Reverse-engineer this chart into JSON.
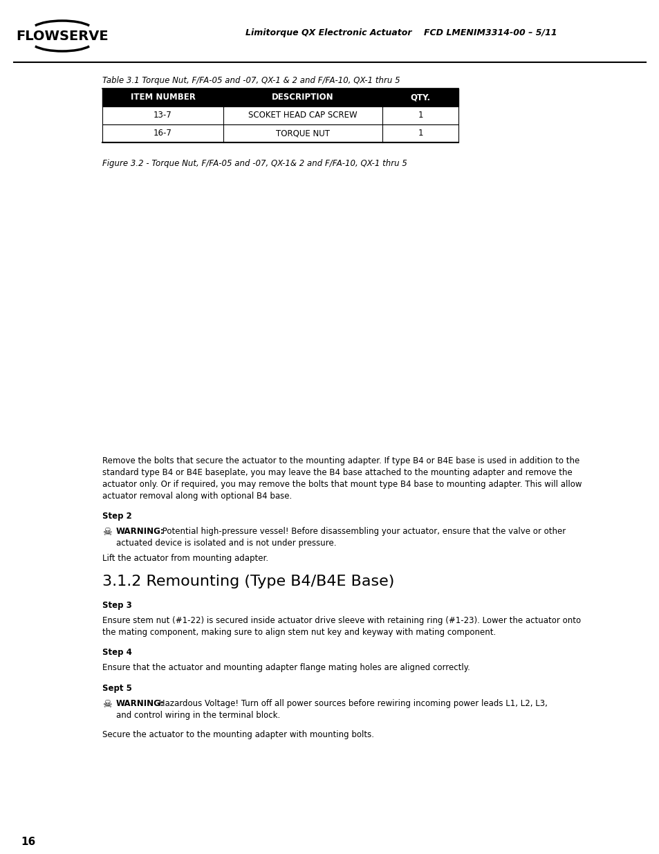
{
  "page_bg": "#ffffff",
  "logo_text": "FLOWSERVE",
  "header_right": "Limitorque QX Electronic Actuator    FCD LMENIM3314-00 – 5/11",
  "table_caption": "Table 3.1 Torque Nut, F/FA-05 and -07, QX-1 & 2 and F/FA-10, QX-1 thru 5",
  "table_headers": [
    "ITEM NUMBER",
    "DESCRIPTION",
    "QTY."
  ],
  "table_rows": [
    [
      "13-7",
      "SCOKET HEAD CAP SCREW",
      "1"
    ],
    [
      "16-7",
      "TORQUE NUT",
      "1"
    ]
  ],
  "table_header_bg": "#000000",
  "table_header_fg": "#ffffff",
  "figure_caption": "Figure 3.2 - Torque Nut, F/FA-05 and -07, QX-1& 2 and F/FA-10, QX-1 thru 5",
  "body_text_1_lines": [
    "Remove the bolts that secure the actuator to the mounting adapter. If type B4 or B4E base is used in addition to the",
    "standard type B4 or B4E baseplate, you may leave the B4 base attached to the mounting adapter and remove the",
    "actuator only. Or if required, you may remove the bolts that mount type B4 base to mounting adapter. This will allow",
    "actuator removal along with optional B4 base."
  ],
  "step2_label": "Step 2",
  "warning1_bold": "WARNING:",
  "warning1_rest": " Potential high-pressure vessel! Before disassembling your actuator, ensure that the valve or other",
  "warning1_line2": "actuated device is isolated and is not under pressure.",
  "lift_text": "Lift the actuator from mounting adapter.",
  "section_heading": "3.1.2 Remounting (Type B4/B4E Base)",
  "step3_label": "Step 3",
  "step3_lines": [
    "Ensure stem nut (#1-22) is secured inside actuator drive sleeve with retaining ring (#1-23). Lower the actuator onto",
    "the mating component, making sure to align stem nut key and keyway with mating component."
  ],
  "step4_label": "Step 4",
  "step4_text": "Ensure that the actuator and mounting adapter flange mating holes are aligned correctly.",
  "step5_label": "Sept 5",
  "warning2_bold": "WARNING:",
  "warning2_rest": " Hazardous Voltage! Turn off all power sources before rewiring incoming power leads L1, L2, L3,",
  "warning2_line2": "and control wiring in the terminal block.",
  "secure_text": "Secure the actuator to the mounting adapter with mounting bolts.",
  "page_number": "16"
}
